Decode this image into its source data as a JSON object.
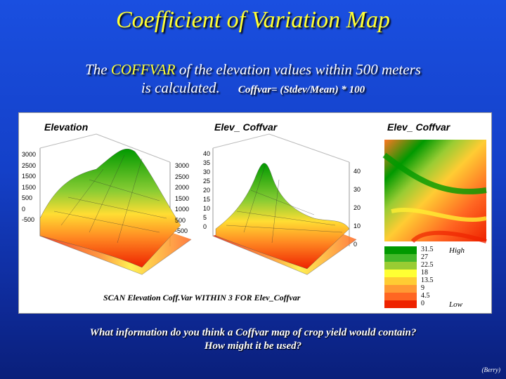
{
  "slide": {
    "title": "Coefficient of Variation Map",
    "subtitle_line1_pre": "The ",
    "subtitle_line1_hl": "COFFVAR",
    "subtitle_line1_post": " of the elevation values within 500 meters",
    "subtitle_line2": "is calculated.",
    "formula": "Coffvar= (Stdev/Mean) * 100",
    "question_line1": "What information do you think a Coffvar map of crop yield would contain?",
    "question_line2": "How might it be used?",
    "credit": "(Berry)"
  },
  "panel": {
    "label_elevation": "Elevation",
    "label_coffvar3d": "Elev_ Coffvar",
    "label_coffvar2d": "Elev_ Coffvar",
    "caption": "SCAN Elevation Coff.Var WITHIN 3 FOR Elev_Coffvar",
    "elev_axis_left": [
      "3000",
      "2500",
      "1500",
      "1500",
      "500",
      "0",
      "-500"
    ],
    "elev_axis_right": [
      "3000",
      "2500",
      "2000",
      "1500",
      "1000",
      "500",
      "-500"
    ],
    "coff_axis_left": [
      "40",
      "35",
      "30",
      "25",
      "20",
      "15",
      "10",
      "5",
      "0"
    ],
    "coff_axis_right": [
      "40",
      "30",
      "20",
      "10",
      "0"
    ],
    "legend": {
      "values": [
        "31.5",
        "27",
        "22.5",
        "18",
        "13.5",
        "9",
        "4.5",
        "0"
      ],
      "colors": [
        "#009900",
        "#44b82a",
        "#99cc33",
        "#ffff33",
        "#ffcc33",
        "#ff9933",
        "#ff6622",
        "#ee2200"
      ],
      "high": "High",
      "low": "Low"
    }
  }
}
